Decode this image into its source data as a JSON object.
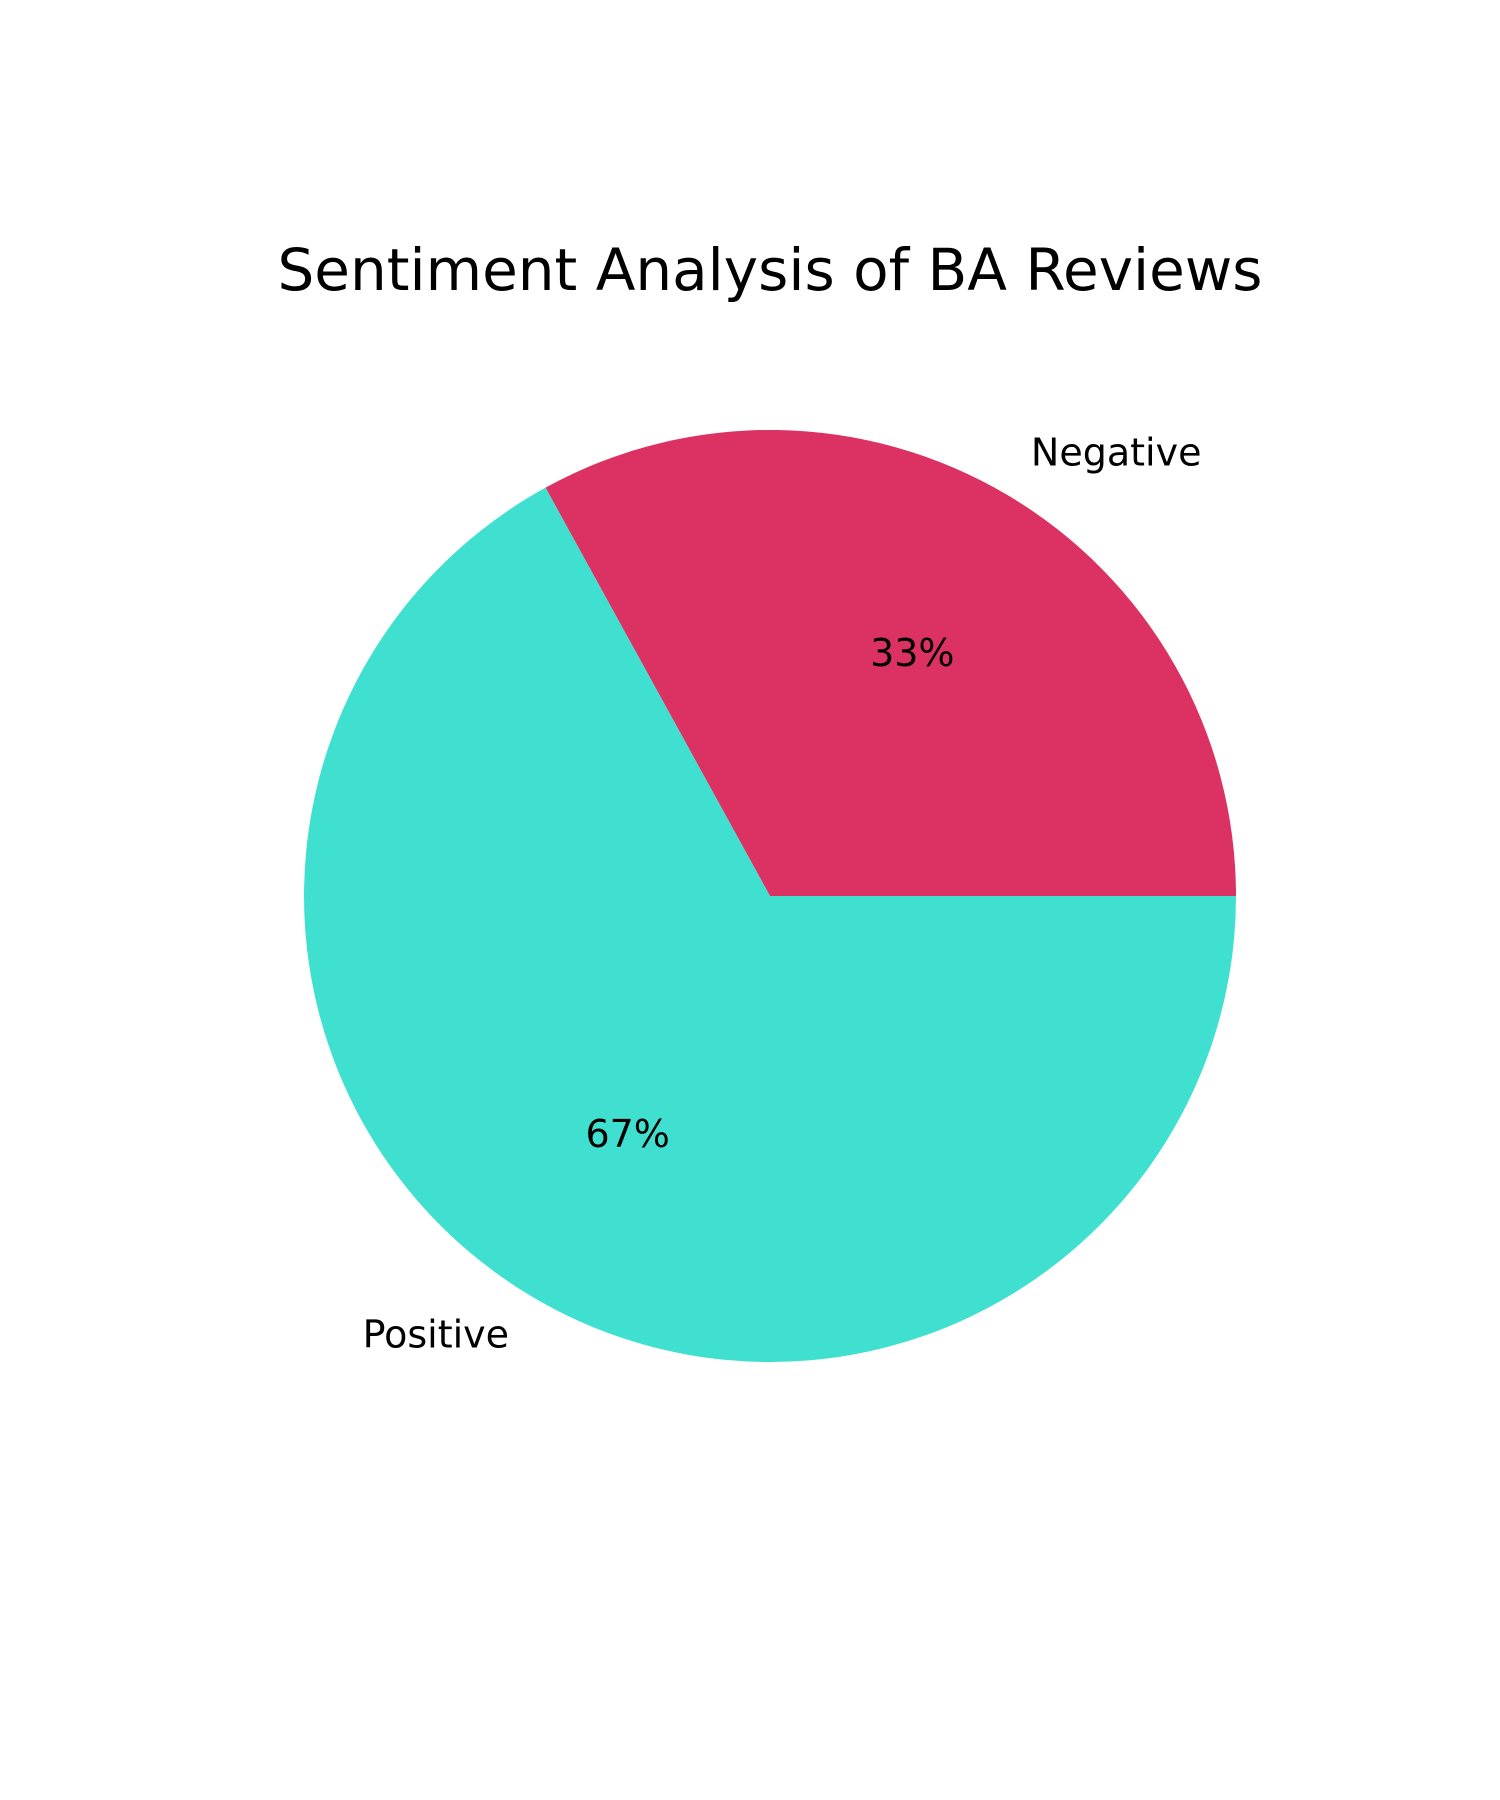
{
  "chart_data": {
    "type": "pie",
    "title": "Sentiment Analysis of BA Reviews",
    "categories": [
      "Negative",
      "Positive"
    ],
    "values": [
      33,
      67
    ],
    "value_labels": [
      "33%",
      "67%"
    ],
    "colors": [
      "#DC3263",
      "#40E0D0"
    ],
    "start_angle_deg": 0,
    "direction": "counterclockwise",
    "legend": "none"
  }
}
